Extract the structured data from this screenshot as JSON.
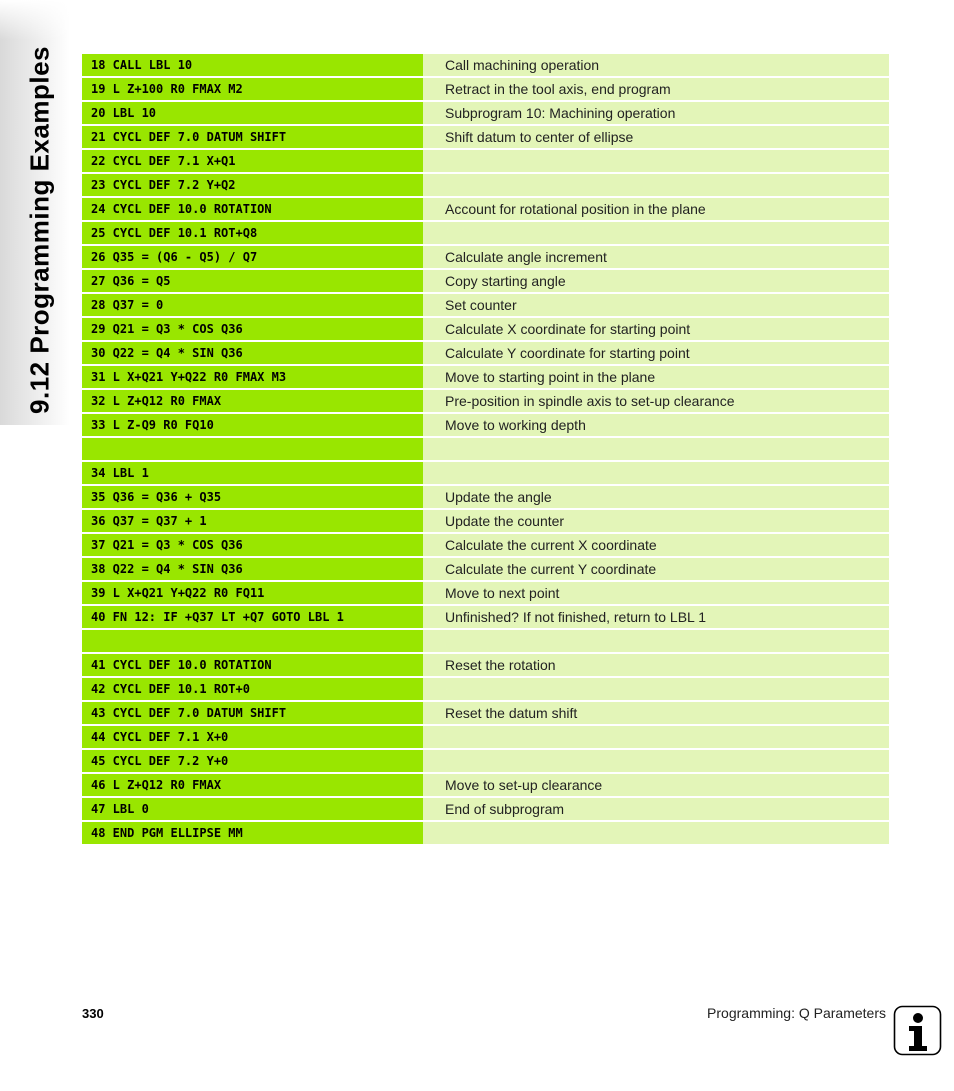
{
  "side_tab": {
    "title": "9.12 Programming Examples"
  },
  "rows": [
    {
      "code": "18 CALL LBL 10",
      "desc": "Call machining operation"
    },
    {
      "code": "19 L Z+100 R0 FMAX M2",
      "desc": "Retract in the tool axis, end program"
    },
    {
      "code": "20 LBL 10",
      "desc": "Subprogram 10: Machining operation"
    },
    {
      "code": "21 CYCL DEF 7.0 DATUM SHIFT",
      "desc": "Shift datum to center of ellipse"
    },
    {
      "code": "22 CYCL DEF 7.1 X+Q1",
      "desc": ""
    },
    {
      "code": "23 CYCL DEF 7.2 Y+Q2",
      "desc": ""
    },
    {
      "code": "24 CYCL DEF 10.0 ROTATION",
      "desc": "Account for rotational position in the plane"
    },
    {
      "code": "25 CYCL DEF 10.1 ROT+Q8",
      "desc": ""
    },
    {
      "code": "26 Q35 = (Q6 - Q5) / Q7",
      "desc": "Calculate angle increment"
    },
    {
      "code": "27 Q36 = Q5",
      "desc": "Copy starting angle"
    },
    {
      "code": "28 Q37 = 0",
      "desc": "Set counter"
    },
    {
      "code": "29 Q21 = Q3 * COS Q36",
      "desc": "Calculate X coordinate for starting point"
    },
    {
      "code": "30 Q22 = Q4 * SIN Q36",
      "desc": "Calculate Y coordinate for starting point"
    },
    {
      "code": "31 L X+Q21 Y+Q22 R0 FMAX M3",
      "desc": "Move to starting point in the plane"
    },
    {
      "code": "32 L Z+Q12 R0 FMAX",
      "desc": "Pre-position in spindle axis to set-up clearance"
    },
    {
      "code": "33 L Z-Q9 R0 FQ10",
      "desc": "Move to working depth"
    },
    {
      "code": "",
      "desc": ""
    },
    {
      "code": "34 LBL 1",
      "desc": ""
    },
    {
      "code": "35 Q36 = Q36 + Q35",
      "desc": "Update the angle"
    },
    {
      "code": "36 Q37 = Q37 + 1",
      "desc": "Update the counter"
    },
    {
      "code": "37 Q21 = Q3 * COS Q36",
      "desc": "Calculate the current X coordinate"
    },
    {
      "code": "38 Q22 = Q4 * SIN Q36",
      "desc": "Calculate the current Y coordinate"
    },
    {
      "code": "39 L X+Q21 Y+Q22 R0 FQ11",
      "desc": "Move to next point"
    },
    {
      "code": "40 FN 12: IF +Q37 LT +Q7 GOTO LBL 1",
      "desc": "Unfinished? If not finished, return to LBL 1"
    },
    {
      "code": "",
      "desc": ""
    },
    {
      "code": "41 CYCL DEF 10.0 ROTATION",
      "desc": "Reset the rotation"
    },
    {
      "code": "42 CYCL DEF 10.1 ROT+0",
      "desc": ""
    },
    {
      "code": "43 CYCL DEF 7.0 DATUM SHIFT",
      "desc": "Reset the datum shift"
    },
    {
      "code": "44 CYCL DEF 7.1 X+0",
      "desc": ""
    },
    {
      "code": "45 CYCL DEF 7.2 Y+0",
      "desc": ""
    },
    {
      "code": "46 L Z+Q12 R0 FMAX",
      "desc": "Move to set-up clearance"
    },
    {
      "code": "47 LBL 0",
      "desc": "End of subprogram"
    },
    {
      "code": "48 END PGM ELLIPSE MM",
      "desc": ""
    }
  ],
  "footer": {
    "page_number": "330",
    "chapter_title": "Programming: Q Parameters"
  },
  "icons": {
    "info": "info-icon"
  }
}
